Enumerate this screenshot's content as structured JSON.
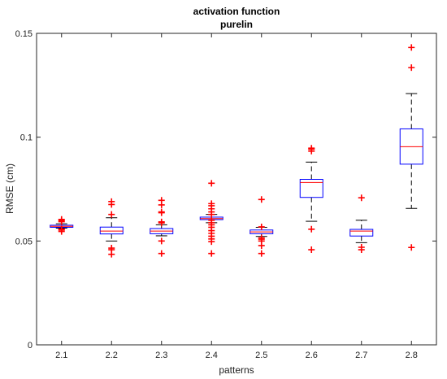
{
  "chart_data": {
    "type": "box",
    "title": "activation function",
    "subtitle": "purelin",
    "xlabel": "patterns",
    "ylabel": "RMSE (cm)",
    "ylim": [
      0,
      0.15
    ],
    "yticks": [
      "0",
      "0.05",
      "0.1",
      "0.15"
    ],
    "ytick_values": [
      0,
      0.05,
      0.1,
      0.15
    ],
    "grid": false,
    "categories": [
      "2.1",
      "2.2",
      "2.3",
      "2.4",
      "2.5",
      "2.6",
      "2.7",
      "2.8"
    ],
    "boxes": [
      {
        "category": "2.1",
        "whisker_low": 0.0562,
        "q1": 0.0566,
        "median": 0.0571,
        "q3": 0.0576,
        "whisker_high": 0.0583,
        "outliers": [
          0.0546,
          0.0553,
          0.0557,
          0.0593,
          0.0598,
          0.0604
        ]
      },
      {
        "category": "2.2",
        "whisker_low": 0.05,
        "q1": 0.0534,
        "median": 0.0548,
        "q3": 0.0567,
        "whisker_high": 0.0612,
        "outliers": [
          0.069,
          0.0676,
          0.0628,
          0.0466,
          0.0458,
          0.0436
        ]
      },
      {
        "category": "2.3",
        "whisker_low": 0.0525,
        "q1": 0.0535,
        "median": 0.0548,
        "q3": 0.056,
        "whisker_high": 0.0578,
        "outliers": [
          0.0696,
          0.0674,
          0.064,
          0.0636,
          0.0592,
          0.0587,
          0.05,
          0.044
        ]
      },
      {
        "category": "2.4",
        "whisker_low": 0.0588,
        "q1": 0.0603,
        "median": 0.0608,
        "q3": 0.0615,
        "whisker_high": 0.0628,
        "outliers": [
          0.0778,
          0.068,
          0.067,
          0.0655,
          0.064,
          0.0628,
          0.06,
          0.0588,
          0.0578,
          0.0566,
          0.055,
          0.0537,
          0.0523,
          0.051,
          0.0497,
          0.044
        ]
      },
      {
        "category": "2.5",
        "whisker_low": 0.0522,
        "q1": 0.0535,
        "median": 0.0544,
        "q3": 0.0553,
        "whisker_high": 0.0566,
        "outliers": [
          0.07,
          0.0568,
          0.0515,
          0.0509,
          0.05,
          0.0478,
          0.044
        ]
      },
      {
        "category": "2.6",
        "whisker_low": 0.0595,
        "q1": 0.071,
        "median": 0.0782,
        "q3": 0.0797,
        "whisker_high": 0.088,
        "outliers": [
          0.0947,
          0.0942,
          0.0933,
          0.0557,
          0.0458
        ]
      },
      {
        "category": "2.7",
        "whisker_low": 0.0492,
        "q1": 0.0524,
        "median": 0.0548,
        "q3": 0.0556,
        "whisker_high": 0.06,
        "outliers": [
          0.0708,
          0.047,
          0.0458
        ]
      },
      {
        "category": "2.8",
        "whisker_low": 0.0657,
        "q1": 0.087,
        "median": 0.0954,
        "q3": 0.104,
        "whisker_high": 0.121,
        "outliers": [
          0.1432,
          0.1335,
          0.0469
        ]
      }
    ],
    "colors": {
      "box": "#0000ff",
      "median": "#ff0000",
      "whisker": "#000000",
      "outlier": "#ff0000",
      "axis": "#262626"
    }
  }
}
